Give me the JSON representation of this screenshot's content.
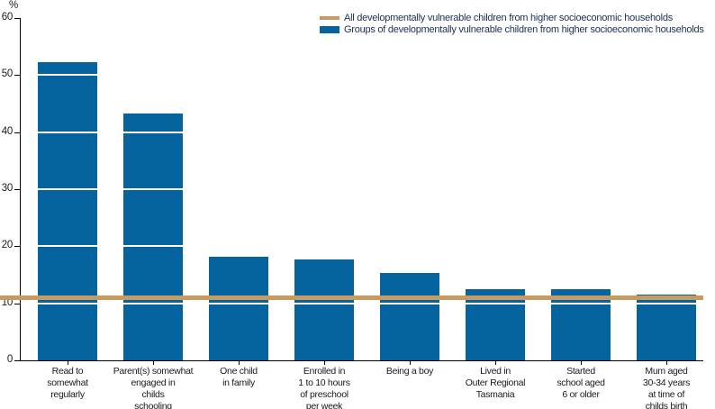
{
  "chart_data": {
    "type": "bar",
    "title": "",
    "xlabel": "",
    "ylabel": "%",
    "ylim": [
      0,
      60
    ],
    "yticks": [
      0,
      10,
      20,
      30,
      40,
      50,
      60
    ],
    "grid": "white gridlines drawn over bars at each y tick",
    "legend_position": "top-right",
    "categories": [
      "Read to\nsomewhat\nregularly",
      "Parent(s) somewhat\nengaged in\nchilds\nschooling",
      "One child\nin family",
      "Enrolled in\n1 to 10 hours\nof preschool\nper week",
      "Being a boy",
      "Lived in\nOuter Regional\nTasmania",
      "Started\nschool aged\n6 or older",
      "Mum aged\n30-34 years\nat time of\nchilds birth"
    ],
    "series": [
      {
        "name": "Groups of developmentally vulnerable children from higher socioeconomic households",
        "values": [
          52.3,
          43.3,
          18.1,
          17.7,
          15.3,
          12.5,
          12.5,
          11.6
        ]
      }
    ],
    "reference_line": {
      "name": "All developmentally vulnerable children from higher socioeconomic households",
      "value": 11
    }
  },
  "legend": {
    "items": [
      {
        "swatch": "line",
        "label": "All developmentally vulnerable children from higher socioeconomic households"
      },
      {
        "swatch": "rect",
        "label": "Groups of developmentally vulnerable children from higher socioeconomic households"
      }
    ]
  },
  "colors": {
    "bar": "#05639d",
    "reference_line": "#c79a62",
    "axis": "#000000",
    "gridline": "#ffffff",
    "axis_text": "#1a1a1a",
    "legend_text": "#1a3050"
  }
}
